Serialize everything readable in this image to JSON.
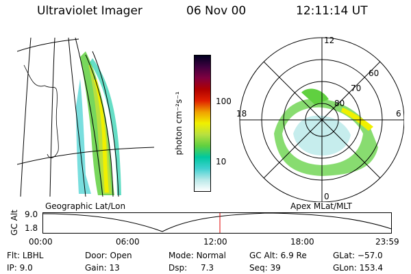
{
  "header": {
    "instrument": "Ultraviolet Imager",
    "date": "06 Nov 00",
    "time": "12:11:14 UT"
  },
  "geographic_panel": {
    "label": "Geographic Lat/Lon"
  },
  "colorbar": {
    "unit_label": "photon cm⁻²s⁻¹",
    "ticks": [
      {
        "label": "100",
        "value": 100
      },
      {
        "label": "10",
        "value": 10
      }
    ],
    "colors": [
      "#ffffff",
      "#b8e8e8",
      "#40d0d0",
      "#00c8a0",
      "#60d040",
      "#b8e040",
      "#f0f000",
      "#f0a000",
      "#e02000",
      "#b00000",
      "#800040",
      "#400040",
      "#000020"
    ]
  },
  "polar_panel": {
    "label": "Apex MLat/MLT",
    "mlt_labels": {
      "top": "12",
      "left": "18",
      "right": "6",
      "bottom": "0"
    },
    "lat_labels": [
      "60",
      "70",
      "80"
    ]
  },
  "orbit_plot": {
    "ylabel": "GC Alt",
    "y_ticks": [
      "9.0",
      "1.8"
    ],
    "x_ticks": [
      "00:00",
      "06:00",
      "12:00",
      "18:00",
      "23:59"
    ],
    "current_time_hours": 12.19
  },
  "info": {
    "filter_label": "Flt:",
    "filter_value": "LBHL",
    "ip_label": "IP:",
    "ip_value": "9.0",
    "door_label": "Door:",
    "door_value": "Open",
    "gain_label": "Gain:",
    "gain_value": "13",
    "mode_label": "Mode:",
    "mode_value": "Normal",
    "dsp_label": "Dsp:",
    "dsp_value": "7.3",
    "gcalt_label": "GC Alt:",
    "gcalt_value": "6.9 Re",
    "seq_label": "Seq:",
    "seq_value": "39",
    "glat_label": "GLat:",
    "glat_value": "−57.0",
    "glon_label": "GLon:",
    "glon_value": "153.4"
  }
}
